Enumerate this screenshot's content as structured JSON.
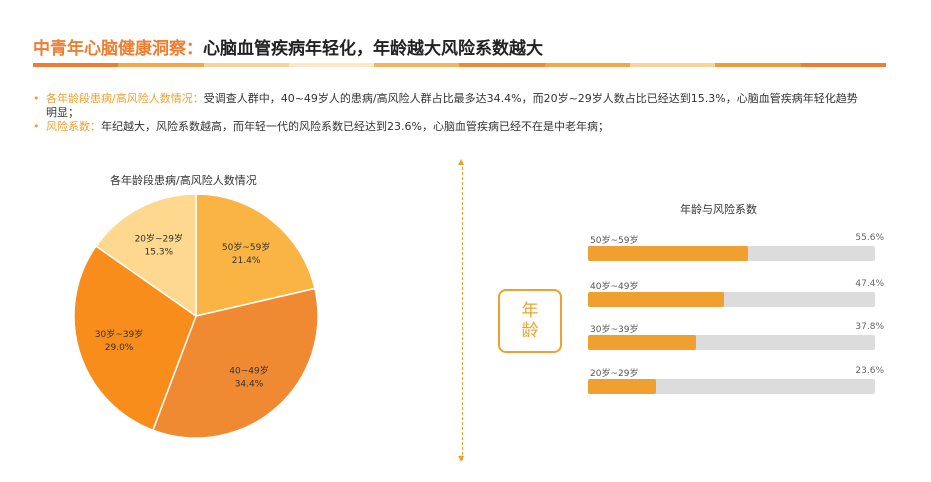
{
  "header": {
    "title_accent": "中青年心脑健康洞察：",
    "title_rest": "心脑血管疾病年轻化，年龄越大风险系数越大",
    "bar_colors": [
      "#ee7d31",
      "#f4a74a",
      "#fbd39a",
      "#fde8c8",
      "#f7b25e",
      "#f08a32",
      "#f4a74a",
      "#fbd39a",
      "#f09a3a",
      "#ee7d31"
    ]
  },
  "bullets": [
    {
      "key": "各年龄段患病/高风险人数情况：",
      "text": "受调查人群中，40~49岁人的患病/高风险人群占比最多达34.4%，而20岁~29岁人数占比已经达到15.3%，心脑血管疾病年轻化趋势明显；"
    },
    {
      "key": "风险系数：",
      "text": "年纪越大，风险系数越高，而年轻一代的风险系数已经达到23.6%，心脑血管疾病已经不在是中老年病；"
    }
  ],
  "age_box": {
    "line1": "年",
    "line2": "龄"
  },
  "chart_data": [
    {
      "type": "pie",
      "title": "各年龄段患病/高风险人数情况",
      "categories": [
        "50岁~59岁",
        "40~49岁",
        "30岁~39岁",
        "20岁~29岁"
      ],
      "values": [
        21.4,
        34.4,
        29.0,
        15.3
      ],
      "labels": [
        "21.4%",
        "34.4%",
        "29.0%",
        "15.3%"
      ],
      "colors": [
        "#f9b444",
        "#f08a32",
        "#f88d1c",
        "#fdd88e"
      ],
      "start_angle_deg": 0,
      "direction": "clockwise"
    },
    {
      "type": "bar",
      "orientation": "horizontal",
      "title": "年龄与风险系数",
      "categories": [
        "50岁~59岁",
        "40岁~49岁",
        "30岁~39岁",
        "20岁~29岁"
      ],
      "values": [
        55.6,
        47.4,
        37.8,
        23.6
      ],
      "labels": [
        "55.6%",
        "47.4%",
        "37.8%",
        "23.6%"
      ],
      "xlim": [
        0,
        100
      ],
      "bar_color": "#f0a030",
      "track_color": "#dcdcdc"
    }
  ]
}
